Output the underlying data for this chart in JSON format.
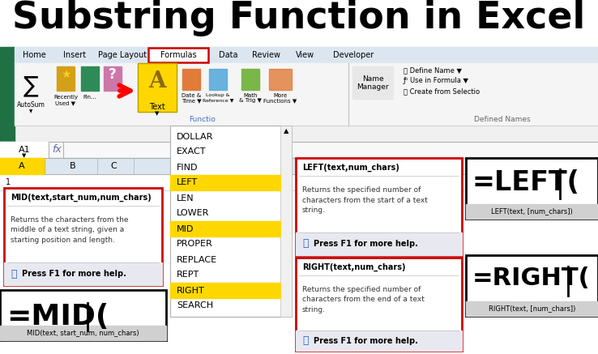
{
  "title": "Substring Function in Excel",
  "bg_color": "#ffffff",
  "yellow": "#FFD700",
  "red_border": "#cc0000",
  "menu_items": [
    "DOLLAR",
    "EXACT",
    "FIND",
    "LEFT",
    "LEN",
    "LOWER",
    "MID",
    "PROPER",
    "REPLACE",
    "REPT",
    "RIGHT",
    "SEARCH"
  ],
  "highlighted_items": [
    "LEFT",
    "MID",
    "RIGHT"
  ],
  "ribbon_tabs": [
    "Home",
    "Insert",
    "Page Layout",
    "Formulas",
    "Data",
    "Review",
    "View",
    "Developer"
  ],
  "mid_box_title": "MID(text,start_num,num_chars)",
  "mid_box_body": "Returns the characters from the\nmiddle of a text string, given a\nstarting position and length.",
  "mid_box_help": "Press F1 for more help.",
  "left_box_title": "LEFT(text,num_chars)",
  "left_box_body": "Returns the specified number of\ncharacters from the start of a text\nstring.",
  "left_box_help": "Press F1 for more help.",
  "right_box_title": "RIGHT(text,num_chars)",
  "right_box_body": "Returns the specified number of\ncharacters from the end of a text\nstring.",
  "right_box_help": "Press F1 for more help.",
  "mid_formula": "=MID(",
  "mid_formula_sub": "MID(text, start_num, num_chars)",
  "left_formula": "=LEFT(",
  "left_formula_sub": "LEFT(text, [num_chars])",
  "right_formula": "=RIGHT(",
  "right_formula_sub": "RIGHT(text, [num_chars])"
}
